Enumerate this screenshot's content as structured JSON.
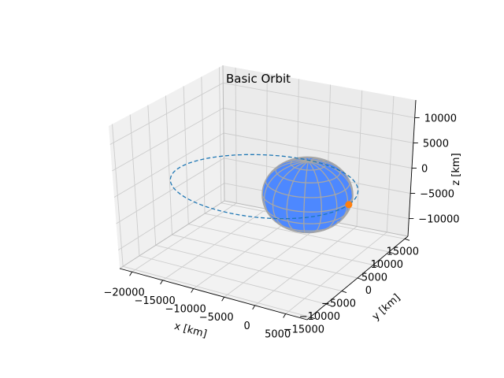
{
  "chart_data": {
    "type": "line",
    "projection": "3d",
    "title": "Basic Orbit",
    "xlabel": "x [km]",
    "ylabel": "y [km]",
    "zlabel": "z [km]",
    "xlim": [
      -22000,
      8500
    ],
    "ylim": [
      -16000,
      16000
    ],
    "zlim": [
      -13500,
      13500
    ],
    "xticks": [
      {
        "value": -20000,
        "label": "−20000"
      },
      {
        "value": -15000,
        "label": "−15000"
      },
      {
        "value": -10000,
        "label": "−10000"
      },
      {
        "value": -5000,
        "label": "−5000"
      },
      {
        "value": 0,
        "label": "0"
      },
      {
        "value": 5000,
        "label": "5000"
      }
    ],
    "yticks": [
      {
        "value": -15000,
        "label": "−15000"
      },
      {
        "value": -10000,
        "label": "−10000"
      },
      {
        "value": -5000,
        "label": "−5000"
      },
      {
        "value": 0,
        "label": "0"
      },
      {
        "value": 5000,
        "label": "5000"
      },
      {
        "value": 10000,
        "label": "10000"
      },
      {
        "value": 15000,
        "label": "15000"
      }
    ],
    "zticks": [
      {
        "value": -10000,
        "label": "−10000"
      },
      {
        "value": -5000,
        "label": "−5000"
      },
      {
        "value": 0,
        "label": "0"
      },
      {
        "value": 5000,
        "label": "5000"
      },
      {
        "value": 10000,
        "label": "10000"
      }
    ],
    "grid": true,
    "orbit": {
      "shape": "ellipse",
      "line_style": "dashed",
      "color": "#1f77b4",
      "center_km": [
        -6800,
        0,
        0
      ],
      "semi_major_axis_km": 13500,
      "semi_minor_axis_km": 12000
    },
    "body": {
      "shape": "sphere",
      "radius_km": 6378,
      "center_km": [
        0,
        0,
        0
      ],
      "face_color": "#4d88ff",
      "grid_color": "#a6a6a6"
    },
    "position_marker": {
      "color": "#ff7f0e",
      "position_km": [
        6700,
        -300,
        0
      ]
    }
  }
}
